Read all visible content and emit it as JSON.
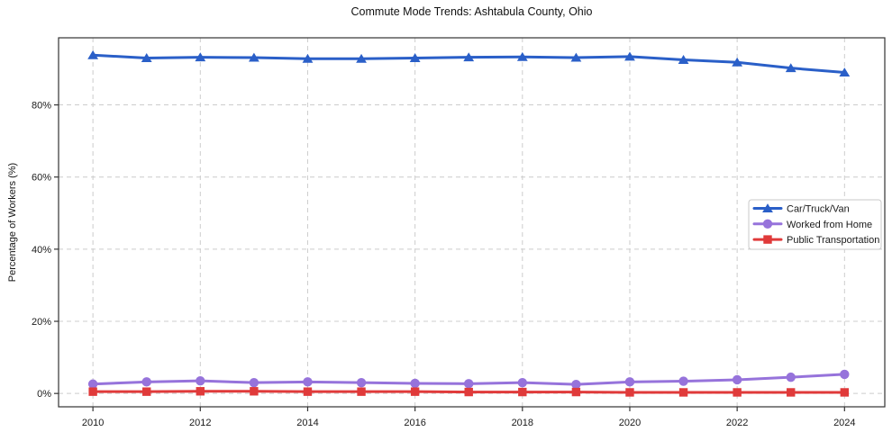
{
  "title": "Commute Mode Trends: Ashtabula County, Ohio",
  "y_axis_label": "Percentage of Workers (%)",
  "chart_data": {
    "type": "line",
    "title": "Commute Mode Trends: Ashtabula County, Ohio",
    "xlabel": "",
    "ylabel": "Percentage of Workers (%)",
    "x": [
      2010,
      2011,
      2012,
      2013,
      2014,
      2015,
      2016,
      2017,
      2018,
      2019,
      2020,
      2021,
      2022,
      2023,
      2024
    ],
    "series": [
      {
        "name": "Car/Truck/Van",
        "color": "#2a5fc8",
        "marker": "triangle",
        "values": [
          93.8,
          93.0,
          93.2,
          93.1,
          92.8,
          92.8,
          93.0,
          93.2,
          93.3,
          93.1,
          93.4,
          92.5,
          91.8,
          90.2,
          89.0
        ]
      },
      {
        "name": "Worked from Home",
        "color": "#9673db",
        "marker": "circle",
        "values": [
          2.6,
          3.2,
          3.5,
          3.0,
          3.2,
          3.0,
          2.8,
          2.7,
          3.0,
          2.5,
          3.2,
          3.4,
          3.8,
          4.5,
          5.3
        ]
      },
      {
        "name": "Public Transportation",
        "color": "#e03a3a",
        "marker": "square",
        "values": [
          0.5,
          0.5,
          0.6,
          0.6,
          0.5,
          0.5,
          0.5,
          0.4,
          0.4,
          0.4,
          0.3,
          0.3,
          0.3,
          0.3,
          0.3
        ]
      }
    ],
    "xticks": [
      2010,
      2012,
      2014,
      2016,
      2018,
      2020,
      2022,
      2024
    ],
    "yticks": [
      0,
      20,
      40,
      60,
      80
    ],
    "ytick_labels": [
      "0%",
      "20%",
      "40%",
      "60%",
      "80%"
    ],
    "xlim": [
      2009.36,
      2024.75
    ],
    "ylim": [
      -3.7,
      98.6
    ],
    "grid": true,
    "grid_style": "dashed",
    "legend": {
      "position": "center right",
      "entries": [
        "Car/Truck/Van",
        "Worked from Home",
        "Public Transportation"
      ]
    }
  },
  "colors": {
    "background": "#ffffff",
    "grid": "#cccccc",
    "axis": "#333333",
    "text": "#1a1a1a",
    "legend_border": "#c9c9c9",
    "legend_bg": "#ffffff"
  }
}
